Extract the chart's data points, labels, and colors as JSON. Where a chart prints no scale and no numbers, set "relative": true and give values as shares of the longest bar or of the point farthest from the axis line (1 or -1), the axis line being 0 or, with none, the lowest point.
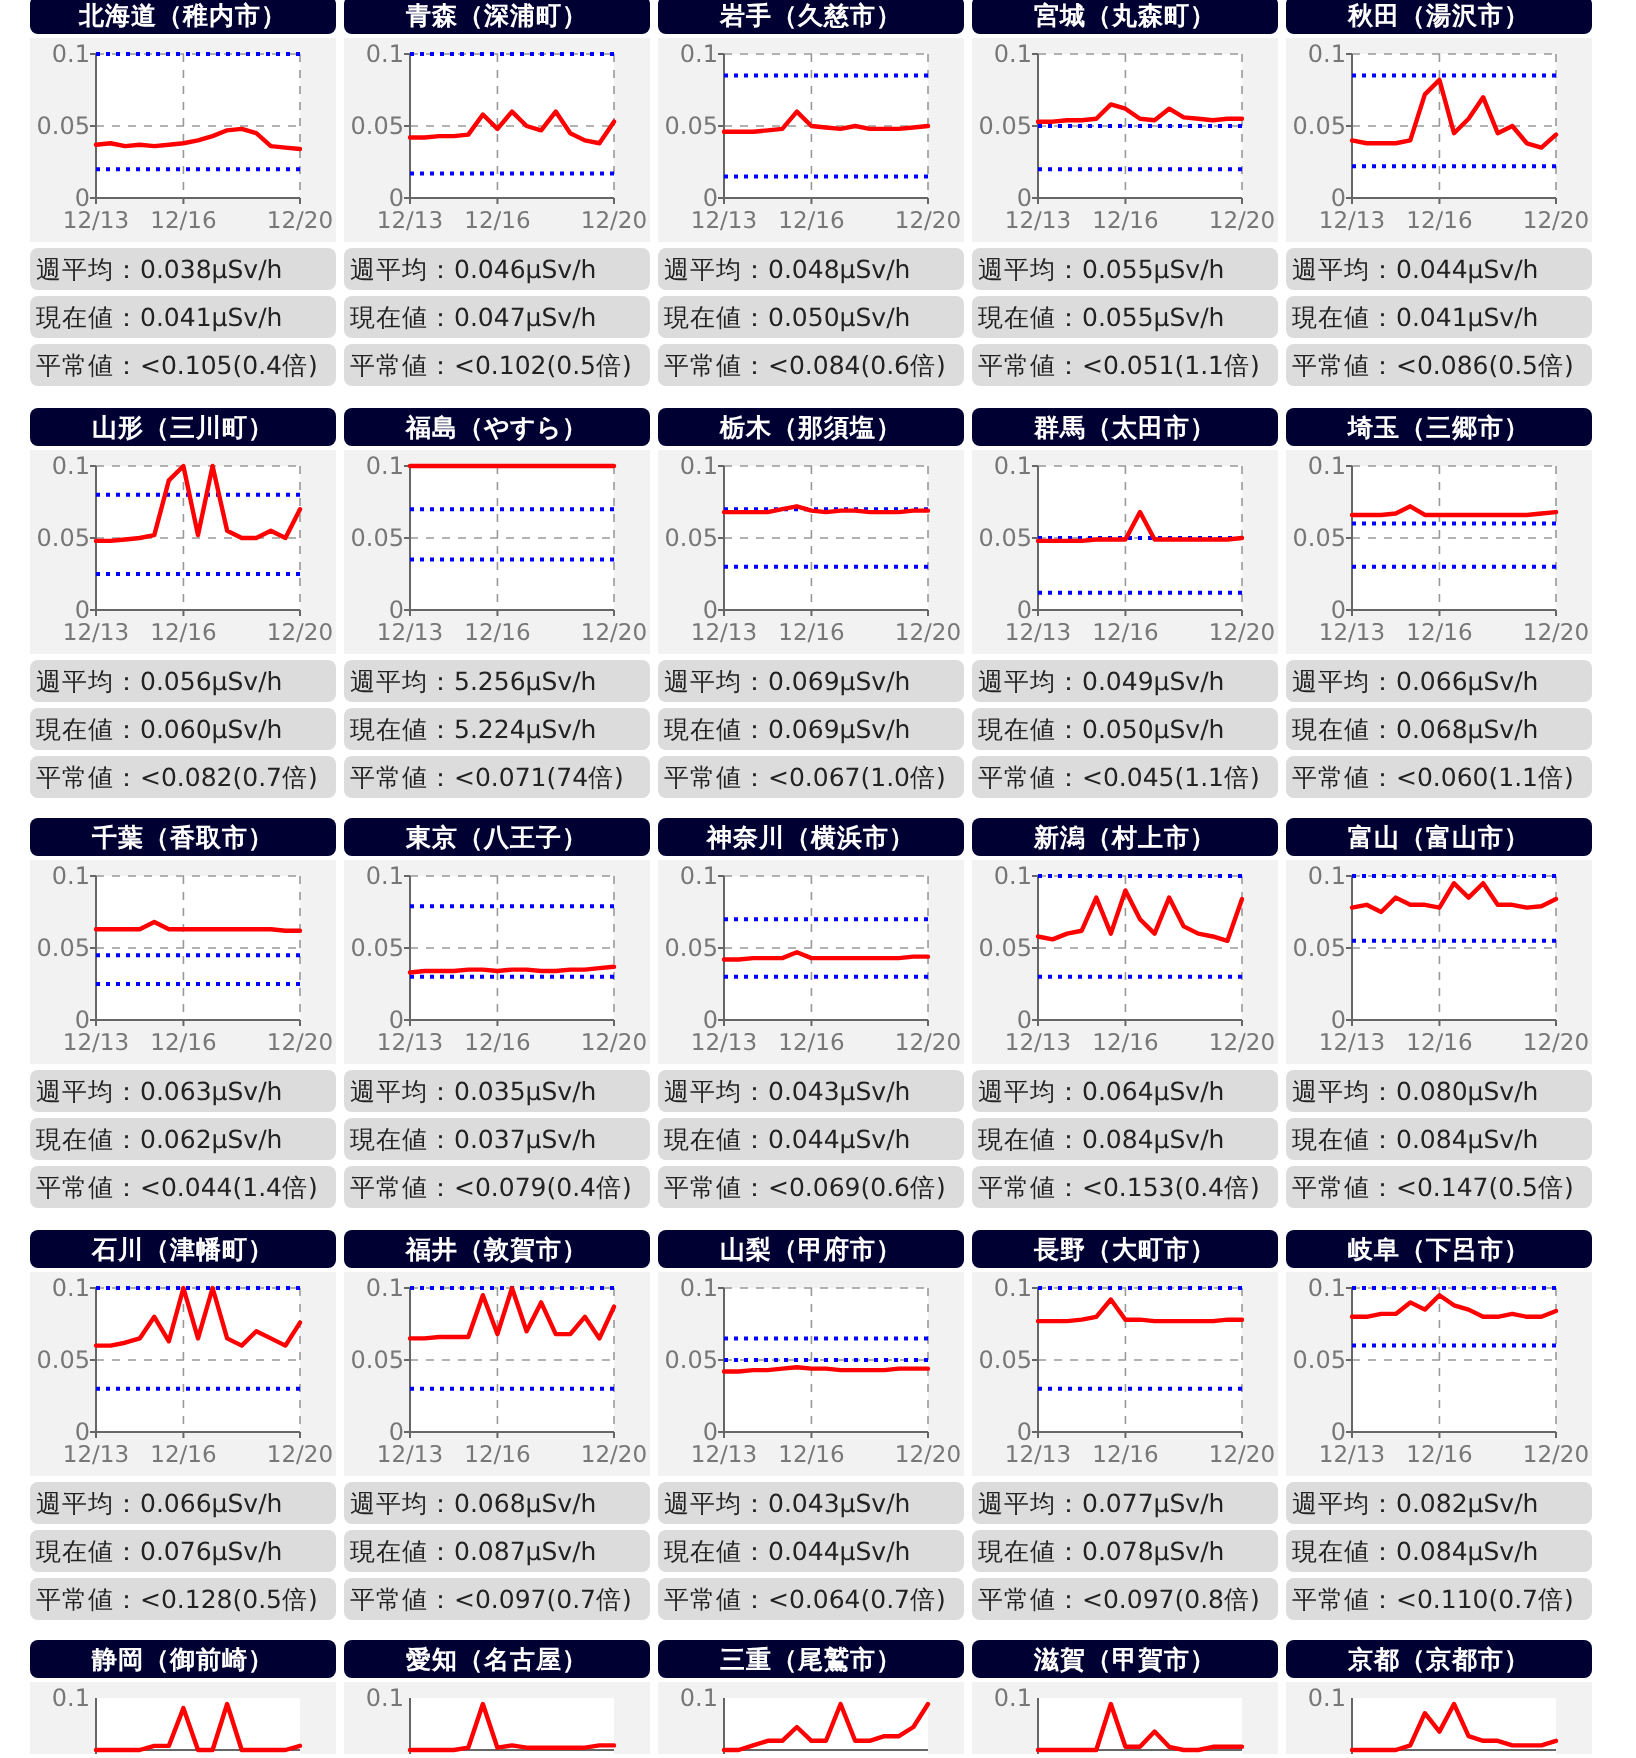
{
  "chart_data": [
    {
      "type": "line",
      "title": "北海道（稚内市）",
      "x": [
        "--12-13T00:00",
        "--12-13T12:00",
        "--12-14T00:00",
        "--12-14T12:00",
        "--12-15T00:00",
        "--12-15T12:00",
        "--12-16T00:00",
        "--12-16T12:00",
        "--12-17T00:00",
        "--12-17T12:00",
        "--12-18T00:00",
        "--12-18T12:00",
        "--12-19T00:00",
        "--12-19T12:00",
        "--12-20T00:00"
      ],
      "series": [
        {
          "color": "#ff0000",
          "values": [
            0.037,
            0.038,
            0.036,
            0.037,
            0.036,
            0.037,
            0.038,
            0.04,
            0.043,
            0.047,
            0.048,
            0.045,
            0.036,
            0.035,
            0.034
          ]
        }
      ],
      "ref_lines": [
        {
          "axis": "y",
          "value": 0.1,
          "color": "#0000ff",
          "line_style": "dotted"
        },
        {
          "axis": "y",
          "value": 0.02,
          "color": "#0000ff",
          "line_style": "dotted"
        }
      ],
      "xlim": [
        "--12-13",
        "--12-20"
      ],
      "xticks": [
        {
          "value": "--12-13",
          "label": "12/13"
        },
        {
          "value": "--12-16",
          "label": "12/16"
        },
        {
          "value": "--12-20",
          "label": "12/20"
        }
      ],
      "ylim": [
        0,
        0.1
      ],
      "yticks": [
        0,
        0.05,
        0.1
      ],
      "grid": true,
      "marker": "none",
      "line_style": "solid",
      "annotations": [
        "週平均：0.038μSv/h",
        "現在値：0.041μSv/h",
        "平常値：<0.105(0.4倍)"
      ]
    },
    {
      "type": "line",
      "title": "青森（深浦町）",
      "x": [
        "--12-13T00:00",
        "--12-13T12:00",
        "--12-14T00:00",
        "--12-14T12:00",
        "--12-15T00:00",
        "--12-15T12:00",
        "--12-16T00:00",
        "--12-16T12:00",
        "--12-17T00:00",
        "--12-17T12:00",
        "--12-18T00:00",
        "--12-18T12:00",
        "--12-19T00:00",
        "--12-19T12:00",
        "--12-20T00:00"
      ],
      "series": [
        {
          "color": "#ff0000",
          "values": [
            0.042,
            0.042,
            0.043,
            0.043,
            0.044,
            0.058,
            0.048,
            0.06,
            0.05,
            0.047,
            0.06,
            0.045,
            0.04,
            0.038,
            0.053
          ]
        }
      ],
      "ref_lines": [
        {
          "axis": "y",
          "value": 0.1,
          "color": "#0000ff",
          "line_style": "dotted"
        },
        {
          "axis": "y",
          "value": 0.017,
          "color": "#0000ff",
          "line_style": "dotted"
        }
      ],
      "xlim": [
        "--12-13",
        "--12-20"
      ],
      "xticks": [
        {
          "value": "--12-13",
          "label": "12/13"
        },
        {
          "value": "--12-16",
          "label": "12/16"
        },
        {
          "value": "--12-20",
          "label": "12/20"
        }
      ],
      "ylim": [
        0,
        0.1
      ],
      "yticks": [
        0,
        0.05,
        0.1
      ],
      "grid": true,
      "marker": "none",
      "line_style": "solid",
      "annotations": [
        "週平均：0.046μSv/h",
        "現在値：0.047μSv/h",
        "平常値：<0.102(0.5倍)"
      ]
    },
    {
      "type": "line",
      "title": "岩手（久慈市）",
      "x": [
        "--12-13T00:00",
        "--12-13T12:00",
        "--12-14T00:00",
        "--12-14T12:00",
        "--12-15T00:00",
        "--12-15T12:00",
        "--12-16T00:00",
        "--12-16T12:00",
        "--12-17T00:00",
        "--12-17T12:00",
        "--12-18T00:00",
        "--12-18T12:00",
        "--12-19T00:00",
        "--12-19T12:00",
        "--12-20T00:00"
      ],
      "series": [
        {
          "color": "#ff0000",
          "values": [
            0.046,
            0.046,
            0.046,
            0.047,
            0.048,
            0.06,
            0.05,
            0.049,
            0.048,
            0.05,
            0.048,
            0.048,
            0.048,
            0.049,
            0.05
          ]
        }
      ],
      "ref_lines": [
        {
          "axis": "y",
          "value": 0.085,
          "color": "#0000ff",
          "line_style": "dotted"
        },
        {
          "axis": "y",
          "value": 0.015,
          "color": "#0000ff",
          "line_style": "dotted"
        }
      ],
      "xlim": [
        "--12-13",
        "--12-20"
      ],
      "xticks": [
        {
          "value": "--12-13",
          "label": "12/13"
        },
        {
          "value": "--12-16",
          "label": "12/16"
        },
        {
          "value": "--12-20",
          "label": "12/20"
        }
      ],
      "ylim": [
        0,
        0.1
      ],
      "yticks": [
        0,
        0.05,
        0.1
      ],
      "grid": true,
      "marker": "none",
      "line_style": "solid",
      "annotations": [
        "週平均：0.048μSv/h",
        "現在値：0.050μSv/h",
        "平常値：<0.084(0.6倍)"
      ]
    },
    {
      "type": "line",
      "title": "宮城（丸森町）",
      "x": [
        "--12-13T00:00",
        "--12-13T12:00",
        "--12-14T00:00",
        "--12-14T12:00",
        "--12-15T00:00",
        "--12-15T12:00",
        "--12-16T00:00",
        "--12-16T12:00",
        "--12-17T00:00",
        "--12-17T12:00",
        "--12-18T00:00",
        "--12-18T12:00",
        "--12-19T00:00",
        "--12-19T12:00",
        "--12-20T00:00"
      ],
      "series": [
        {
          "color": "#ff0000",
          "values": [
            0.053,
            0.053,
            0.054,
            0.054,
            0.055,
            0.065,
            0.062,
            0.055,
            0.054,
            0.062,
            0.056,
            0.055,
            0.054,
            0.055,
            0.055
          ]
        }
      ],
      "ref_lines": [
        {
          "axis": "y",
          "value": 0.05,
          "color": "#0000ff",
          "line_style": "dotted"
        },
        {
          "axis": "y",
          "value": 0.02,
          "color": "#0000ff",
          "line_style": "dotted"
        }
      ],
      "xlim": [
        "--12-13",
        "--12-20"
      ],
      "xticks": [
        {
          "value": "--12-13",
          "label": "12/13"
        },
        {
          "value": "--12-16",
          "label": "12/16"
        },
        {
          "value": "--12-20",
          "label": "12/20"
        }
      ],
      "ylim": [
        0,
        0.1
      ],
      "yticks": [
        0,
        0.05,
        0.1
      ],
      "grid": true,
      "marker": "none",
      "line_style": "solid",
      "annotations": [
        "週平均：0.055μSv/h",
        "現在値：0.055μSv/h",
        "平常値：<0.051(1.1倍)"
      ]
    },
    {
      "type": "line",
      "title": "秋田（湯沢市）",
      "x": [
        "--12-13T00:00",
        "--12-13T12:00",
        "--12-14T00:00",
        "--12-14T12:00",
        "--12-15T00:00",
        "--12-15T12:00",
        "--12-16T00:00",
        "--12-16T12:00",
        "--12-17T00:00",
        "--12-17T12:00",
        "--12-18T00:00",
        "--12-18T12:00",
        "--12-19T00:00",
        "--12-19T12:00",
        "--12-20T00:00"
      ],
      "series": [
        {
          "color": "#ff0000",
          "values": [
            0.04,
            0.038,
            0.038,
            0.038,
            0.04,
            0.072,
            0.082,
            0.045,
            0.055,
            0.07,
            0.045,
            0.05,
            0.038,
            0.035,
            0.044
          ]
        }
      ],
      "ref_lines": [
        {
          "axis": "y",
          "value": 0.085,
          "color": "#0000ff",
          "line_style": "dotted"
        },
        {
          "axis": "y",
          "value": 0.022,
          "color": "#0000ff",
          "line_style": "dotted"
        }
      ],
      "xlim": [
        "--12-13",
        "--12-20"
      ],
      "xticks": [
        {
          "value": "--12-13",
          "label": "12/13"
        },
        {
          "value": "--12-16",
          "label": "12/16"
        },
        {
          "value": "--12-20",
          "label": "12/20"
        }
      ],
      "ylim": [
        0,
        0.1
      ],
      "yticks": [
        0,
        0.05,
        0.1
      ],
      "grid": true,
      "marker": "none",
      "line_style": "solid",
      "annotations": [
        "週平均：0.044μSv/h",
        "現在値：0.041μSv/h",
        "平常値：<0.086(0.5倍)"
      ]
    },
    {
      "type": "line",
      "title": "山形（三川町）",
      "x": [
        "--12-13T00:00",
        "--12-13T12:00",
        "--12-14T00:00",
        "--12-14T12:00",
        "--12-15T00:00",
        "--12-15T12:00",
        "--12-16T00:00",
        "--12-16T12:00",
        "--12-17T00:00",
        "--12-17T12:00",
        "--12-18T00:00",
        "--12-18T12:00",
        "--12-19T00:00",
        "--12-19T12:00",
        "--12-20T00:00"
      ],
      "series": [
        {
          "color": "#ff0000",
          "values": [
            0.048,
            0.048,
            0.049,
            0.05,
            0.052,
            0.09,
            0.1,
            0.052,
            0.1,
            0.055,
            0.05,
            0.05,
            0.055,
            0.05,
            0.07
          ]
        }
      ],
      "ref_lines": [
        {
          "axis": "y",
          "value": 0.08,
          "color": "#0000ff",
          "line_style": "dotted"
        },
        {
          "axis": "y",
          "value": 0.025,
          "color": "#0000ff",
          "line_style": "dotted"
        }
      ],
      "xlim": [
        "--12-13",
        "--12-20"
      ],
      "xticks": [
        {
          "value": "--12-13",
          "label": "12/13"
        },
        {
          "value": "--12-16",
          "label": "12/16"
        },
        {
          "value": "--12-20",
          "label": "12/20"
        }
      ],
      "ylim": [
        0,
        0.1
      ],
      "yticks": [
        0,
        0.05,
        0.1
      ],
      "grid": true,
      "marker": "none",
      "line_style": "solid",
      "annotations": [
        "週平均：0.056μSv/h",
        "現在値：0.060μSv/h",
        "平常値：<0.082(0.7倍)"
      ]
    },
    {
      "type": "line",
      "title": "福島（やすら）",
      "x": [
        "--12-13T00:00",
        "--12-13T12:00",
        "--12-14T00:00",
        "--12-14T12:00",
        "--12-15T00:00",
        "--12-15T12:00",
        "--12-16T00:00",
        "--12-16T12:00",
        "--12-17T00:00",
        "--12-17T12:00",
        "--12-18T00:00",
        "--12-18T12:00",
        "--12-19T00:00",
        "--12-19T12:00",
        "--12-20T00:00"
      ],
      "series": [
        {
          "color": "#ff0000",
          "values": [
            0.1,
            0.1,
            0.1,
            0.1,
            0.1,
            0.1,
            0.1,
            0.1,
            0.1,
            0.1,
            0.1,
            0.1,
            0.1,
            0.1,
            0.1
          ]
        }
      ],
      "ref_lines": [
        {
          "axis": "y",
          "value": 0.07,
          "color": "#0000ff",
          "line_style": "dotted"
        },
        {
          "axis": "y",
          "value": 0.035,
          "color": "#0000ff",
          "line_style": "dotted"
        }
      ],
      "xlim": [
        "--12-13",
        "--12-20"
      ],
      "xticks": [
        {
          "value": "--12-13",
          "label": "12/13"
        },
        {
          "value": "--12-16",
          "label": "12/16"
        },
        {
          "value": "--12-20",
          "label": "12/20"
        }
      ],
      "ylim": [
        0,
        0.1
      ],
      "yticks": [
        0,
        0.05,
        0.1
      ],
      "grid": true,
      "marker": "none",
      "line_style": "solid",
      "annotations": [
        "週平均：5.256μSv/h",
        "現在値：5.224μSv/h",
        "平常値：<0.071(74倍)"
      ]
    },
    {
      "type": "line",
      "title": "栃木（那須塩）",
      "x": [
        "--12-13T00:00",
        "--12-13T12:00",
        "--12-14T00:00",
        "--12-14T12:00",
        "--12-15T00:00",
        "--12-15T12:00",
        "--12-16T00:00",
        "--12-16T12:00",
        "--12-17T00:00",
        "--12-17T12:00",
        "--12-18T00:00",
        "--12-18T12:00",
        "--12-19T00:00",
        "--12-19T12:00",
        "--12-20T00:00"
      ],
      "series": [
        {
          "color": "#ff0000",
          "values": [
            0.068,
            0.068,
            0.068,
            0.068,
            0.07,
            0.072,
            0.069,
            0.068,
            0.069,
            0.069,
            0.068,
            0.068,
            0.068,
            0.069,
            0.069
          ]
        }
      ],
      "ref_lines": [
        {
          "axis": "y",
          "value": 0.07,
          "color": "#0000ff",
          "line_style": "dotted"
        },
        {
          "axis": "y",
          "value": 0.03,
          "color": "#0000ff",
          "line_style": "dotted"
        }
      ],
      "xlim": [
        "--12-13",
        "--12-20"
      ],
      "xticks": [
        {
          "value": "--12-13",
          "label": "12/13"
        },
        {
          "value": "--12-16",
          "label": "12/16"
        },
        {
          "value": "--12-20",
          "label": "12/20"
        }
      ],
      "ylim": [
        0,
        0.1
      ],
      "yticks": [
        0,
        0.05,
        0.1
      ],
      "grid": true,
      "marker": "none",
      "line_style": "solid",
      "annotations": [
        "週平均：0.069μSv/h",
        "現在値：0.069μSv/h",
        "平常値：<0.067(1.0倍)"
      ]
    },
    {
      "type": "line",
      "title": "群馬（太田市）",
      "x": [
        "--12-13T00:00",
        "--12-13T12:00",
        "--12-14T00:00",
        "--12-14T12:00",
        "--12-15T00:00",
        "--12-15T12:00",
        "--12-16T00:00",
        "--12-16T12:00",
        "--12-17T00:00",
        "--12-17T12:00",
        "--12-18T00:00",
        "--12-18T12:00",
        "--12-19T00:00",
        "--12-19T12:00",
        "--12-20T00:00"
      ],
      "series": [
        {
          "color": "#ff0000",
          "values": [
            0.048,
            0.048,
            0.048,
            0.048,
            0.049,
            0.049,
            0.049,
            0.068,
            0.049,
            0.049,
            0.049,
            0.049,
            0.049,
            0.049,
            0.05
          ]
        }
      ],
      "ref_lines": [
        {
          "axis": "y",
          "value": 0.05,
          "color": "#0000ff",
          "line_style": "dotted"
        },
        {
          "axis": "y",
          "value": 0.012,
          "color": "#0000ff",
          "line_style": "dotted"
        }
      ],
      "xlim": [
        "--12-13",
        "--12-20"
      ],
      "xticks": [
        {
          "value": "--12-13",
          "label": "12/13"
        },
        {
          "value": "--12-16",
          "label": "12/16"
        },
        {
          "value": "--12-20",
          "label": "12/20"
        }
      ],
      "ylim": [
        0,
        0.1
      ],
      "yticks": [
        0,
        0.05,
        0.1
      ],
      "grid": true,
      "marker": "none",
      "line_style": "solid",
      "annotations": [
        "週平均：0.049μSv/h",
        "現在値：0.050μSv/h",
        "平常値：<0.045(1.1倍)"
      ]
    },
    {
      "type": "line",
      "title": "埼玉（三郷市）",
      "x": [
        "--12-13T00:00",
        "--12-13T12:00",
        "--12-14T00:00",
        "--12-14T12:00",
        "--12-15T00:00",
        "--12-15T12:00",
        "--12-16T00:00",
        "--12-16T12:00",
        "--12-17T00:00",
        "--12-17T12:00",
        "--12-18T00:00",
        "--12-18T12:00",
        "--12-19T00:00",
        "--12-19T12:00",
        "--12-20T00:00"
      ],
      "series": [
        {
          "color": "#ff0000",
          "values": [
            0.066,
            0.066,
            0.066,
            0.067,
            0.072,
            0.066,
            0.066,
            0.066,
            0.066,
            0.066,
            0.066,
            0.066,
            0.066,
            0.067,
            0.068
          ]
        }
      ],
      "ref_lines": [
        {
          "axis": "y",
          "value": 0.06,
          "color": "#0000ff",
          "line_style": "dotted"
        },
        {
          "axis": "y",
          "value": 0.03,
          "color": "#0000ff",
          "line_style": "dotted"
        }
      ],
      "xlim": [
        "--12-13",
        "--12-20"
      ],
      "xticks": [
        {
          "value": "--12-13",
          "label": "12/13"
        },
        {
          "value": "--12-16",
          "label": "12/16"
        },
        {
          "value": "--12-20",
          "label": "12/20"
        }
      ],
      "ylim": [
        0,
        0.1
      ],
      "yticks": [
        0,
        0.05,
        0.1
      ],
      "grid": true,
      "marker": "none",
      "line_style": "solid",
      "annotations": [
        "週平均：0.066μSv/h",
        "現在値：0.068μSv/h",
        "平常値：<0.060(1.1倍)"
      ]
    },
    {
      "type": "line",
      "title": "千葉（香取市）",
      "x": [
        "--12-13T00:00",
        "--12-13T12:00",
        "--12-14T00:00",
        "--12-14T12:00",
        "--12-15T00:00",
        "--12-15T12:00",
        "--12-16T00:00",
        "--12-16T12:00",
        "--12-17T00:00",
        "--12-17T12:00",
        "--12-18T00:00",
        "--12-18T12:00",
        "--12-19T00:00",
        "--12-19T12:00",
        "--12-20T00:00"
      ],
      "series": [
        {
          "color": "#ff0000",
          "values": [
            0.063,
            0.063,
            0.063,
            0.063,
            0.068,
            0.063,
            0.063,
            0.063,
            0.063,
            0.063,
            0.063,
            0.063,
            0.063,
            0.062,
            0.062
          ]
        }
      ],
      "ref_lines": [
        {
          "axis": "y",
          "value": 0.045,
          "color": "#0000ff",
          "line_style": "dotted"
        },
        {
          "axis": "y",
          "value": 0.025,
          "color": "#0000ff",
          "line_style": "dotted"
        }
      ],
      "xlim": [
        "--12-13",
        "--12-20"
      ],
      "xticks": [
        {
          "value": "--12-13",
          "label": "12/13"
        },
        {
          "value": "--12-16",
          "label": "12/16"
        },
        {
          "value": "--12-20",
          "label": "12/20"
        }
      ],
      "ylim": [
        0,
        0.1
      ],
      "yticks": [
        0,
        0.05,
        0.1
      ],
      "grid": true,
      "marker": "none",
      "line_style": "solid",
      "annotations": [
        "週平均：0.063μSv/h",
        "現在値：0.062μSv/h",
        "平常値：<0.044(1.4倍)"
      ]
    },
    {
      "type": "line",
      "title": "東京（八王子）",
      "x": [
        "--12-13T00:00",
        "--12-13T12:00",
        "--12-14T00:00",
        "--12-14T12:00",
        "--12-15T00:00",
        "--12-15T12:00",
        "--12-16T00:00",
        "--12-16T12:00",
        "--12-17T00:00",
        "--12-17T12:00",
        "--12-18T00:00",
        "--12-18T12:00",
        "--12-19T00:00",
        "--12-19T12:00",
        "--12-20T00:00"
      ],
      "series": [
        {
          "color": "#ff0000",
          "values": [
            0.033,
            0.034,
            0.034,
            0.034,
            0.035,
            0.035,
            0.034,
            0.035,
            0.035,
            0.034,
            0.034,
            0.035,
            0.035,
            0.036,
            0.037
          ]
        }
      ],
      "ref_lines": [
        {
          "axis": "y",
          "value": 0.079,
          "color": "#0000ff",
          "line_style": "dotted"
        },
        {
          "axis": "y",
          "value": 0.03,
          "color": "#0000ff",
          "line_style": "dotted"
        }
      ],
      "xlim": [
        "--12-13",
        "--12-20"
      ],
      "xticks": [
        {
          "value": "--12-13",
          "label": "12/13"
        },
        {
          "value": "--12-16",
          "label": "12/16"
        },
        {
          "value": "--12-20",
          "label": "12/20"
        }
      ],
      "ylim": [
        0,
        0.1
      ],
      "yticks": [
        0,
        0.05,
        0.1
      ],
      "grid": true,
      "marker": "none",
      "line_style": "solid",
      "annotations": [
        "週平均：0.035μSv/h",
        "現在値：0.037μSv/h",
        "平常値：<0.079(0.4倍)"
      ]
    },
    {
      "type": "line",
      "title": "神奈川（横浜市）",
      "x": [
        "--12-13T00:00",
        "--12-13T12:00",
        "--12-14T00:00",
        "--12-14T12:00",
        "--12-15T00:00",
        "--12-15T12:00",
        "--12-16T00:00",
        "--12-16T12:00",
        "--12-17T00:00",
        "--12-17T12:00",
        "--12-18T00:00",
        "--12-18T12:00",
        "--12-19T00:00",
        "--12-19T12:00",
        "--12-20T00:00"
      ],
      "series": [
        {
          "color": "#ff0000",
          "values": [
            0.042,
            0.042,
            0.043,
            0.043,
            0.043,
            0.047,
            0.043,
            0.043,
            0.043,
            0.043,
            0.043,
            0.043,
            0.043,
            0.044,
            0.044
          ]
        }
      ],
      "ref_lines": [
        {
          "axis": "y",
          "value": 0.07,
          "color": "#0000ff",
          "line_style": "dotted"
        },
        {
          "axis": "y",
          "value": 0.03,
          "color": "#0000ff",
          "line_style": "dotted"
        }
      ],
      "xlim": [
        "--12-13",
        "--12-20"
      ],
      "xticks": [
        {
          "value": "--12-13",
          "label": "12/13"
        },
        {
          "value": "--12-16",
          "label": "12/16"
        },
        {
          "value": "--12-20",
          "label": "12/20"
        }
      ],
      "ylim": [
        0,
        0.1
      ],
      "yticks": [
        0,
        0.05,
        0.1
      ],
      "grid": true,
      "marker": "none",
      "line_style": "solid",
      "annotations": [
        "週平均：0.043μSv/h",
        "現在値：0.044μSv/h",
        "平常値：<0.069(0.6倍)"
      ]
    },
    {
      "type": "line",
      "title": "新潟（村上市）",
      "x": [
        "--12-13T00:00",
        "--12-13T12:00",
        "--12-14T00:00",
        "--12-14T12:00",
        "--12-15T00:00",
        "--12-15T12:00",
        "--12-16T00:00",
        "--12-16T12:00",
        "--12-17T00:00",
        "--12-17T12:00",
        "--12-18T00:00",
        "--12-18T12:00",
        "--12-19T00:00",
        "--12-19T12:00",
        "--12-20T00:00"
      ],
      "series": [
        {
          "color": "#ff0000",
          "values": [
            0.058,
            0.056,
            0.06,
            0.062,
            0.085,
            0.06,
            0.09,
            0.07,
            0.06,
            0.085,
            0.065,
            0.06,
            0.058,
            0.055,
            0.084
          ]
        }
      ],
      "ref_lines": [
        {
          "axis": "y",
          "value": 0.1,
          "color": "#0000ff",
          "line_style": "dotted"
        },
        {
          "axis": "y",
          "value": 0.03,
          "color": "#0000ff",
          "line_style": "dotted"
        }
      ],
      "xlim": [
        "--12-13",
        "--12-20"
      ],
      "xticks": [
        {
          "value": "--12-13",
          "label": "12/13"
        },
        {
          "value": "--12-16",
          "label": "12/16"
        },
        {
          "value": "--12-20",
          "label": "12/20"
        }
      ],
      "ylim": [
        0,
        0.1
      ],
      "yticks": [
        0,
        0.05,
        0.1
      ],
      "grid": true,
      "marker": "none",
      "line_style": "solid",
      "annotations": [
        "週平均：0.064μSv/h",
        "現在値：0.084μSv/h",
        "平常値：<0.153(0.4倍)"
      ]
    },
    {
      "type": "line",
      "title": "富山（富山市）",
      "x": [
        "--12-13T00:00",
        "--12-13T12:00",
        "--12-14T00:00",
        "--12-14T12:00",
        "--12-15T00:00",
        "--12-15T12:00",
        "--12-16T00:00",
        "--12-16T12:00",
        "--12-17T00:00",
        "--12-17T12:00",
        "--12-18T00:00",
        "--12-18T12:00",
        "--12-19T00:00",
        "--12-19T12:00",
        "--12-20T00:00"
      ],
      "series": [
        {
          "color": "#ff0000",
          "values": [
            0.078,
            0.08,
            0.075,
            0.085,
            0.08,
            0.08,
            0.078,
            0.095,
            0.085,
            0.095,
            0.08,
            0.08,
            0.078,
            0.079,
            0.084
          ]
        }
      ],
      "ref_lines": [
        {
          "axis": "y",
          "value": 0.1,
          "color": "#0000ff",
          "line_style": "dotted"
        },
        {
          "axis": "y",
          "value": 0.055,
          "color": "#0000ff",
          "line_style": "dotted"
        }
      ],
      "xlim": [
        "--12-13",
        "--12-20"
      ],
      "xticks": [
        {
          "value": "--12-13",
          "label": "12/13"
        },
        {
          "value": "--12-16",
          "label": "12/16"
        },
        {
          "value": "--12-20",
          "label": "12/20"
        }
      ],
      "ylim": [
        0,
        0.1
      ],
      "yticks": [
        0,
        0.05,
        0.1
      ],
      "grid": true,
      "marker": "none",
      "line_style": "solid",
      "annotations": [
        "週平均：0.080μSv/h",
        "現在値：0.084μSv/h",
        "平常値：<0.147(0.5倍)"
      ]
    },
    {
      "type": "line",
      "title": "石川（津幡町）",
      "x": [
        "--12-13T00:00",
        "--12-13T12:00",
        "--12-14T00:00",
        "--12-14T12:00",
        "--12-15T00:00",
        "--12-15T12:00",
        "--12-16T00:00",
        "--12-16T12:00",
        "--12-17T00:00",
        "--12-17T12:00",
        "--12-18T00:00",
        "--12-18T12:00",
        "--12-19T00:00",
        "--12-19T12:00",
        "--12-20T00:00"
      ],
      "series": [
        {
          "color": "#ff0000",
          "values": [
            0.06,
            0.06,
            0.062,
            0.065,
            0.08,
            0.063,
            0.1,
            0.065,
            0.1,
            0.065,
            0.06,
            0.07,
            0.065,
            0.06,
            0.076
          ]
        }
      ],
      "ref_lines": [
        {
          "axis": "y",
          "value": 0.1,
          "color": "#0000ff",
          "line_style": "dotted"
        },
        {
          "axis": "y",
          "value": 0.03,
          "color": "#0000ff",
          "line_style": "dotted"
        }
      ],
      "xlim": [
        "--12-13",
        "--12-20"
      ],
      "xticks": [
        {
          "value": "--12-13",
          "label": "12/13"
        },
        {
          "value": "--12-16",
          "label": "12/16"
        },
        {
          "value": "--12-20",
          "label": "12/20"
        }
      ],
      "ylim": [
        0,
        0.1
      ],
      "yticks": [
        0,
        0.05,
        0.1
      ],
      "grid": true,
      "marker": "none",
      "line_style": "solid",
      "annotations": [
        "週平均：0.066μSv/h",
        "現在値：0.076μSv/h",
        "平常値：<0.128(0.5倍)"
      ]
    },
    {
      "type": "line",
      "title": "福井（敦賀市）",
      "x": [
        "--12-13T00:00",
        "--12-13T12:00",
        "--12-14T00:00",
        "--12-14T12:00",
        "--12-15T00:00",
        "--12-15T12:00",
        "--12-16T00:00",
        "--12-16T12:00",
        "--12-17T00:00",
        "--12-17T12:00",
        "--12-18T00:00",
        "--12-18T12:00",
        "--12-19T00:00",
        "--12-19T12:00",
        "--12-20T00:00"
      ],
      "series": [
        {
          "color": "#ff0000",
          "values": [
            0.065,
            0.065,
            0.066,
            0.066,
            0.066,
            0.095,
            0.068,
            0.1,
            0.07,
            0.09,
            0.068,
            0.068,
            0.08,
            0.065,
            0.087
          ]
        }
      ],
      "ref_lines": [
        {
          "axis": "y",
          "value": 0.1,
          "color": "#0000ff",
          "line_style": "dotted"
        },
        {
          "axis": "y",
          "value": 0.03,
          "color": "#0000ff",
          "line_style": "dotted"
        }
      ],
      "xlim": [
        "--12-13",
        "--12-20"
      ],
      "xticks": [
        {
          "value": "--12-13",
          "label": "12/13"
        },
        {
          "value": "--12-16",
          "label": "12/16"
        },
        {
          "value": "--12-20",
          "label": "12/20"
        }
      ],
      "ylim": [
        0,
        0.1
      ],
      "yticks": [
        0,
        0.05,
        0.1
      ],
      "grid": true,
      "marker": "none",
      "line_style": "solid",
      "annotations": [
        "週平均：0.068μSv/h",
        "現在値：0.087μSv/h",
        "平常値：<0.097(0.7倍)"
      ]
    },
    {
      "type": "line",
      "title": "山梨（甲府市）",
      "x": [
        "--12-13T00:00",
        "--12-13T12:00",
        "--12-14T00:00",
        "--12-14T12:00",
        "--12-15T00:00",
        "--12-15T12:00",
        "--12-16T00:00",
        "--12-16T12:00",
        "--12-17T00:00",
        "--12-17T12:00",
        "--12-18T00:00",
        "--12-18T12:00",
        "--12-19T00:00",
        "--12-19T12:00",
        "--12-20T00:00"
      ],
      "series": [
        {
          "color": "#ff0000",
          "values": [
            0.042,
            0.042,
            0.043,
            0.043,
            0.044,
            0.045,
            0.044,
            0.044,
            0.043,
            0.043,
            0.043,
            0.043,
            0.044,
            0.044,
            0.044
          ]
        }
      ],
      "ref_lines": [
        {
          "axis": "y",
          "value": 0.065,
          "color": "#0000ff",
          "line_style": "dotted"
        },
        {
          "axis": "y",
          "value": 0.05,
          "color": "#0000ff",
          "line_style": "dotted"
        }
      ],
      "xlim": [
        "--12-13",
        "--12-20"
      ],
      "xticks": [
        {
          "value": "--12-13",
          "label": "12/13"
        },
        {
          "value": "--12-16",
          "label": "12/16"
        },
        {
          "value": "--12-20",
          "label": "12/20"
        }
      ],
      "ylim": [
        0,
        0.1
      ],
      "yticks": [
        0,
        0.05,
        0.1
      ],
      "grid": true,
      "marker": "none",
      "line_style": "solid",
      "annotations": [
        "週平均：0.043μSv/h",
        "現在値：0.044μSv/h",
        "平常値：<0.064(0.7倍)"
      ]
    },
    {
      "type": "line",
      "title": "長野（大町市）",
      "x": [
        "--12-13T00:00",
        "--12-13T12:00",
        "--12-14T00:00",
        "--12-14T12:00",
        "--12-15T00:00",
        "--12-15T12:00",
        "--12-16T00:00",
        "--12-16T12:00",
        "--12-17T00:00",
        "--12-17T12:00",
        "--12-18T00:00",
        "--12-18T12:00",
        "--12-19T00:00",
        "--12-19T12:00",
        "--12-20T00:00"
      ],
      "series": [
        {
          "color": "#ff0000",
          "values": [
            0.077,
            0.077,
            0.077,
            0.078,
            0.08,
            0.092,
            0.078,
            0.078,
            0.077,
            0.077,
            0.077,
            0.077,
            0.077,
            0.078,
            0.078
          ]
        }
      ],
      "ref_lines": [
        {
          "axis": "y",
          "value": 0.1,
          "color": "#0000ff",
          "line_style": "dotted"
        },
        {
          "axis": "y",
          "value": 0.03,
          "color": "#0000ff",
          "line_style": "dotted"
        }
      ],
      "xlim": [
        "--12-13",
        "--12-20"
      ],
      "xticks": [
        {
          "value": "--12-13",
          "label": "12/13"
        },
        {
          "value": "--12-16",
          "label": "12/16"
        },
        {
          "value": "--12-20",
          "label": "12/20"
        }
      ],
      "ylim": [
        0,
        0.1
      ],
      "yticks": [
        0,
        0.05,
        0.1
      ],
      "grid": true,
      "marker": "none",
      "line_style": "solid",
      "annotations": [
        "週平均：0.077μSv/h",
        "現在値：0.078μSv/h",
        "平常値：<0.097(0.8倍)"
      ]
    },
    {
      "type": "line",
      "title": "岐阜（下呂市）",
      "x": [
        "--12-13T00:00",
        "--12-13T12:00",
        "--12-14T00:00",
        "--12-14T12:00",
        "--12-15T00:00",
        "--12-15T12:00",
        "--12-16T00:00",
        "--12-16T12:00",
        "--12-17T00:00",
        "--12-17T12:00",
        "--12-18T00:00",
        "--12-18T12:00",
        "--12-19T00:00",
        "--12-19T12:00",
        "--12-20T00:00"
      ],
      "series": [
        {
          "color": "#ff0000",
          "values": [
            0.08,
            0.08,
            0.082,
            0.082,
            0.09,
            0.085,
            0.095,
            0.088,
            0.085,
            0.08,
            0.08,
            0.082,
            0.08,
            0.08,
            0.084
          ]
        }
      ],
      "ref_lines": [
        {
          "axis": "y",
          "value": 0.1,
          "color": "#0000ff",
          "line_style": "dotted"
        },
        {
          "axis": "y",
          "value": 0.06,
          "color": "#0000ff",
          "line_style": "dotted"
        }
      ],
      "xlim": [
        "--12-13",
        "--12-20"
      ],
      "xticks": [
        {
          "value": "--12-13",
          "label": "12/13"
        },
        {
          "value": "--12-16",
          "label": "12/16"
        },
        {
          "value": "--12-20",
          "label": "12/20"
        }
      ],
      "ylim": [
        0,
        0.1
      ],
      "yticks": [
        0,
        0.05,
        0.1
      ],
      "grid": true,
      "marker": "none",
      "line_style": "solid",
      "annotations": [
        "週平均：0.082μSv/h",
        "現在値：0.084μSv/h",
        "平常値：<0.110(0.7倍)"
      ]
    },
    {
      "type": "line",
      "title": "静岡（御前崎）",
      "relative": true,
      "categories": [
        null,
        null,
        null,
        null,
        null,
        null,
        null,
        null,
        null,
        null,
        null,
        null,
        null,
        null,
        null
      ],
      "series": [
        {
          "color": "#ff0000",
          "values": [
            0,
            0,
            0,
            0,
            0.09,
            0.09,
            0.91,
            0,
            0,
            1,
            0,
            0,
            0,
            0,
            0.09
          ]
        }
      ],
      "marker": "none",
      "line_style": "solid",
      "annotations": [
        "0.1"
      ]
    },
    {
      "type": "line",
      "title": "愛知（名古屋）",
      "relative": true,
      "categories": [
        null,
        null,
        null,
        null,
        null,
        null,
        null,
        null,
        null,
        null,
        null,
        null,
        null,
        null,
        null
      ],
      "series": [
        {
          "color": "#ff0000",
          "values": [
            0,
            0,
            0,
            0,
            0.05,
            1,
            0.05,
            0.1,
            0.05,
            0.05,
            0.05,
            0.05,
            0.05,
            0.1,
            0.1
          ]
        }
      ],
      "marker": "none",
      "line_style": "solid",
      "annotations": [
        "0.1"
      ]
    },
    {
      "type": "line",
      "title": "三重（尾鷲市）",
      "relative": true,
      "categories": [
        null,
        null,
        null,
        null,
        null,
        null,
        null,
        null,
        null,
        null,
        null,
        null,
        null,
        null,
        null
      ],
      "series": [
        {
          "color": "#ff0000",
          "values": [
            0,
            0,
            0.1,
            0.2,
            0.2,
            0.5,
            0.2,
            0.2,
            1,
            0.2,
            0.2,
            0.3,
            0.3,
            0.5,
            1
          ]
        }
      ],
      "marker": "none",
      "line_style": "solid",
      "annotations": [
        "0.1"
      ]
    },
    {
      "type": "line",
      "title": "滋賀（甲賀市）",
      "relative": true,
      "categories": [
        null,
        null,
        null,
        null,
        null,
        null,
        null,
        null,
        null,
        null,
        null,
        null,
        null,
        null,
        null
      ],
      "series": [
        {
          "color": "#ff0000",
          "values": [
            0,
            0,
            0,
            0,
            0,
            1,
            0.07,
            0.07,
            0.4,
            0.07,
            0,
            0,
            0.07,
            0.07,
            0.07
          ]
        }
      ],
      "marker": "none",
      "line_style": "solid",
      "annotations": [
        "0.1"
      ]
    },
    {
      "type": "line",
      "title": "京都（京都市）",
      "relative": true,
      "categories": [
        null,
        null,
        null,
        null,
        null,
        null,
        null,
        null,
        null,
        null,
        null,
        null,
        null,
        null,
        null
      ],
      "series": [
        {
          "color": "#ff0000",
          "values": [
            0,
            0,
            0,
            0,
            0.1,
            0.8,
            0.4,
            1,
            0.3,
            0.2,
            0.2,
            0.1,
            0.1,
            0.1,
            0.2
          ]
        }
      ],
      "marker": "none",
      "line_style": "solid",
      "annotations": [
        "0.1"
      ]
    }
  ]
}
